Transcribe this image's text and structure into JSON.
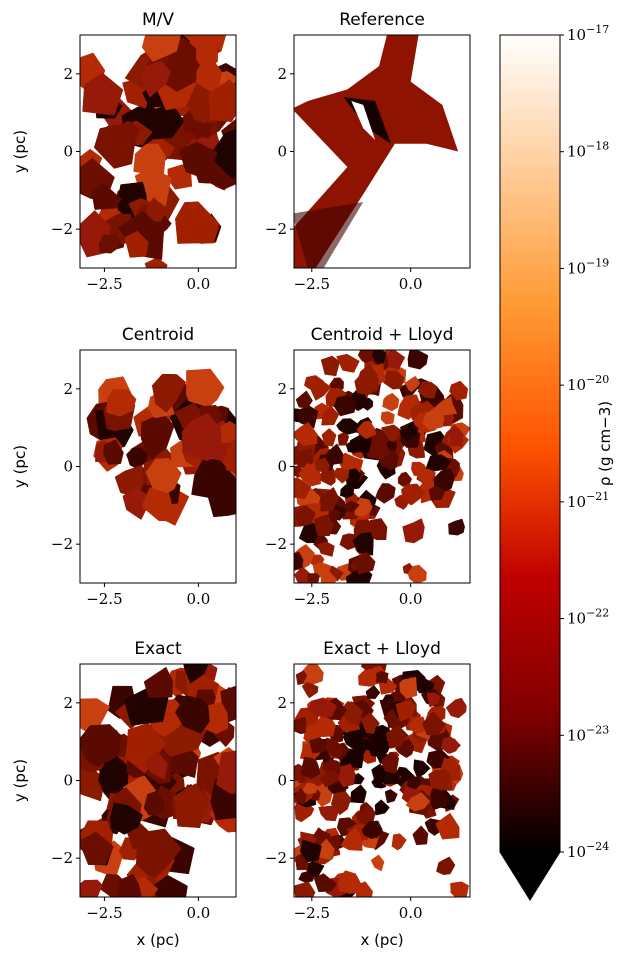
{
  "chart_data": [
    {
      "type": "image",
      "title": "M/V",
      "ylabel": "y (pc)",
      "xlim": [
        -3.15,
        1.0
      ],
      "ylim": [
        -3,
        3
      ],
      "xticks": [
        {
          "value": -2.5,
          "label": "−2.5"
        },
        {
          "value": 0,
          "label": "0.0"
        }
      ],
      "yticks": [
        {
          "value": -2,
          "label": "−2"
        },
        0,
        2
      ]
    },
    {
      "type": "image",
      "title": "Reference",
      "xlim": [
        -2.95,
        1.5
      ],
      "ylim": [
        -3,
        3
      ],
      "xticks": [
        {
          "value": -2.5,
          "label": "−2.5"
        },
        {
          "value": 0,
          "label": "0.0"
        }
      ],
      "yticks": [
        {
          "value": -2,
          "label": "−2"
        },
        0,
        2
      ]
    },
    {
      "type": "image",
      "title": "Centroid",
      "ylabel": "y (pc)",
      "xlim": [
        -3.15,
        1.0
      ],
      "ylim": [
        -3,
        3
      ],
      "xticks": [
        {
          "value": -2.5,
          "label": "−2.5"
        },
        {
          "value": 0,
          "label": "0.0"
        }
      ],
      "yticks": [
        {
          "value": -2,
          "label": "−2"
        },
        0,
        2
      ]
    },
    {
      "type": "image",
      "title": "Centroid + Lloyd",
      "xlim": [
        -2.95,
        1.5
      ],
      "ylim": [
        -3,
        3
      ],
      "xticks": [
        {
          "value": -2.5,
          "label": "−2.5"
        },
        {
          "value": 0,
          "label": "0.0"
        }
      ],
      "yticks": [
        {
          "value": -2,
          "label": "−2"
        },
        0,
        2
      ]
    },
    {
      "type": "image",
      "title": "Exact",
      "ylabel": "y (pc)",
      "xlabel": "x (pc)",
      "xlim": [
        -3.15,
        1.0
      ],
      "ylim": [
        -3,
        3
      ],
      "xticks": [
        {
          "value": -2.5,
          "label": "−2.5"
        },
        {
          "value": 0,
          "label": "0.0"
        }
      ],
      "yticks": [
        {
          "value": -2,
          "label": "−2"
        },
        0,
        2
      ]
    },
    {
      "type": "image",
      "title": "Exact + Lloyd",
      "xlabel": "x (pc)",
      "xlim": [
        -2.95,
        1.5
      ],
      "ylim": [
        -3,
        3
      ],
      "xticks": [
        {
          "value": -2.5,
          "label": "−2.5"
        },
        {
          "value": 0,
          "label": "0.0"
        }
      ],
      "yticks": [
        {
          "value": -2,
          "label": "−2"
        },
        0,
        2
      ]
    },
    {
      "type": "colorbar",
      "label": "ρ (g cm−3)",
      "scale": "log",
      "lim": [
        1e-24,
        1e-17
      ],
      "extend": "min",
      "colors": [
        "#000000",
        "#7e0000",
        "#bf0000",
        "#ff5500",
        "#ff9933",
        "#ffcc99",
        "#ffffff"
      ],
      "ticks": [
        {
          "value": 1e-24,
          "label": "10−24"
        },
        {
          "value": 1e-23,
          "label": "10−23"
        },
        {
          "value": 1e-22,
          "label": "10−22"
        },
        {
          "value": 1e-21,
          "label": "10−21"
        },
        {
          "value": 1e-20,
          "label": "10−20"
        },
        {
          "value": 1e-19,
          "label": "10−19"
        },
        {
          "value": 1e-18,
          "label": "10−18"
        },
        {
          "value": 1e-17,
          "label": "10−17"
        }
      ]
    }
  ]
}
